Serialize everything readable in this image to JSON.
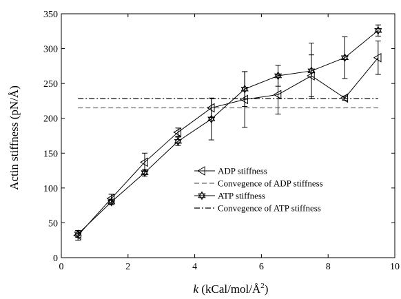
{
  "chart_data": {
    "type": "line",
    "title": "",
    "xlabel_italic": "k",
    "xlabel_rest": " (kCal/mol/Å",
    "xlabel_sup": "2",
    "xlabel_close": ")",
    "ylabel": "Actin stiffness (pN/Å)",
    "xlim": [
      0,
      10
    ],
    "ylim": [
      0,
      350
    ],
    "xticks": [
      0,
      2,
      4,
      6,
      8,
      10
    ],
    "yticks": [
      0,
      50,
      100,
      150,
      200,
      250,
      300,
      350
    ],
    "grid": false,
    "legend_position": "center-right",
    "x": [
      0.5,
      1.5,
      2.5,
      3.5,
      4.5,
      5.5,
      6.5,
      7.5,
      8.5,
      9.5
    ],
    "series": [
      {
        "name": "ADP stiffness",
        "marker": "left-triangle",
        "color": "#000000",
        "values": [
          32,
          85,
          137,
          180,
          215,
          227,
          234,
          261,
          229,
          287
        ],
        "errors": [
          7,
          6,
          13,
          6,
          14,
          40,
          28,
          30,
          3,
          24
        ]
      },
      {
        "name": "ATP stiffness",
        "marker": "hexagram",
        "color": "#000000",
        "values": [
          34,
          80,
          122,
          167,
          199,
          242,
          261,
          268,
          287,
          326
        ],
        "errors": [
          5,
          4,
          5,
          6,
          30,
          25,
          15,
          40,
          30,
          8
        ]
      }
    ],
    "hlines": [
      {
        "name": "Convegence of ADP stiffness",
        "y": 215,
        "style": "dashed",
        "color": "#666666"
      },
      {
        "name": "Convegence of ATP stiffness",
        "y": 228,
        "style": "dashdot",
        "color": "#000000"
      }
    ]
  }
}
